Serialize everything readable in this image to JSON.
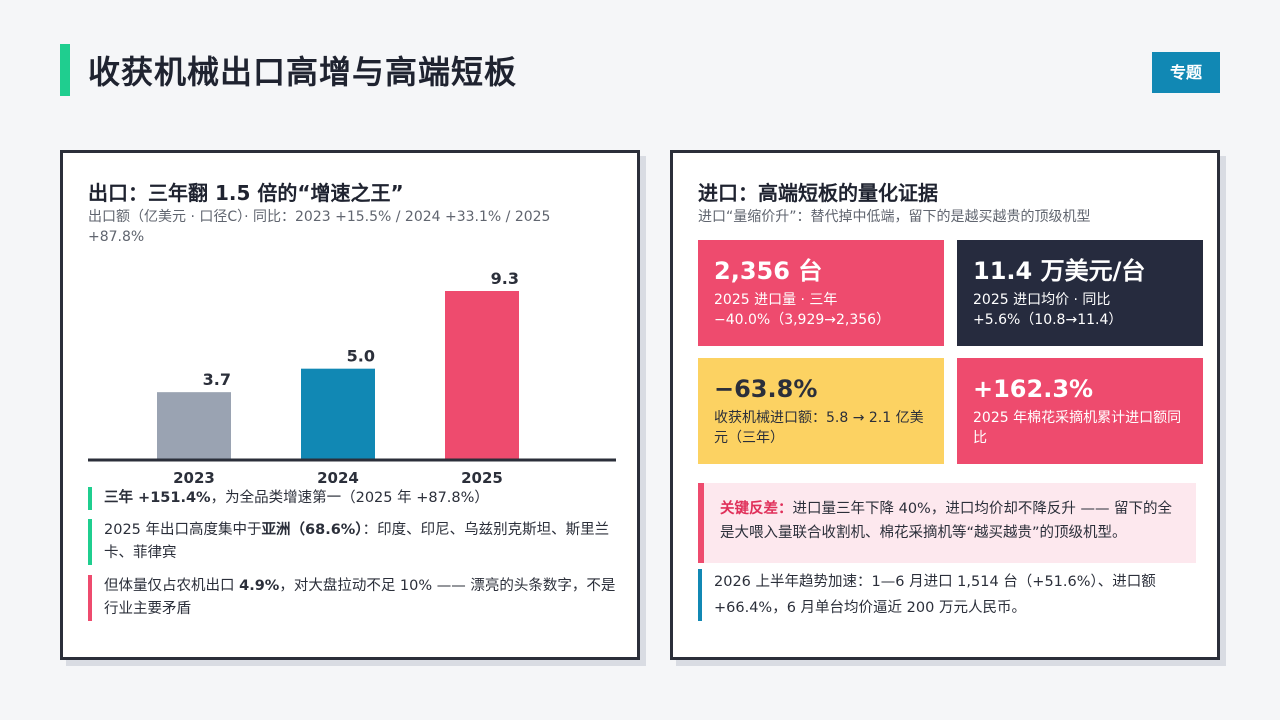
{
  "header": {
    "title": "收获机械出口高增与高端短板",
    "tag": "专题"
  },
  "left": {
    "title": "出口：三年翻 1.5 倍的“增速之王”",
    "subtitle": "出口额（亿美元 · 口径C）· 同比：2023 +15.5% / 2024 +33.1% / 2025 +87.8%",
    "notes": [
      {
        "bold": "三年 +151.4%",
        "rest": "，为全品类增速第一（2025 年 +87.8%）"
      },
      {
        "pre": "2025 年出口高度集中于",
        "bold": "亚洲（68.6%）",
        "rest": "：印度、印尼、乌兹别克斯坦、斯里兰卡、菲律宾"
      },
      {
        "pre": "但体量仅占农机出口 ",
        "bold": "4.9%",
        "rest": "，对大盘拉动不足 10% —— 漂亮的头条数字，不是行业主要矛盾"
      }
    ]
  },
  "chart_data": {
    "type": "bar",
    "categories": [
      "2023",
      "2024",
      "2025"
    ],
    "values": [
      3.7,
      5.0,
      9.3
    ],
    "value_labels": [
      "3.7",
      "5.0",
      "9.3"
    ],
    "colors": [
      "#9aa3b2",
      "#1188b4",
      "#ee4b6e"
    ],
    "ylim": [
      0,
      9.3
    ],
    "grid": false
  },
  "right": {
    "title": "进口：高端短板的量化证据",
    "subtitle": "进口“量缩价升”：替代掉中低端，留下的是越买越贵的顶级机型",
    "cards": [
      {
        "big": "2,356 台",
        "desc": "2025 进口量 · 三年 −40.0%（3,929→2,356）"
      },
      {
        "big": "11.4 万美元/台",
        "desc": "2025 进口均价 · 同比 +5.6%（10.8→11.4）"
      },
      {
        "big": "−63.8%",
        "desc": "收获机械进口额：5.8 → 2.1 亿美元（三年）"
      },
      {
        "big": "+162.3%",
        "desc": "2025 年棉花采摘机累计进口额同比"
      }
    ],
    "callout": {
      "keyword": "关键反差：",
      "text": "进口量三年下降 40%，进口均价却不降反升 —— 留下的全是大喂入量联合收割机、棉花采摘机等“越买越贵”的顶级机型。"
    },
    "trend": "2026 上半年趋势加速：1—6 月进口 1,514 台（+51.6%）、进口额 +66.4%，6 月单台均价逼近 200 万元人民币。"
  }
}
